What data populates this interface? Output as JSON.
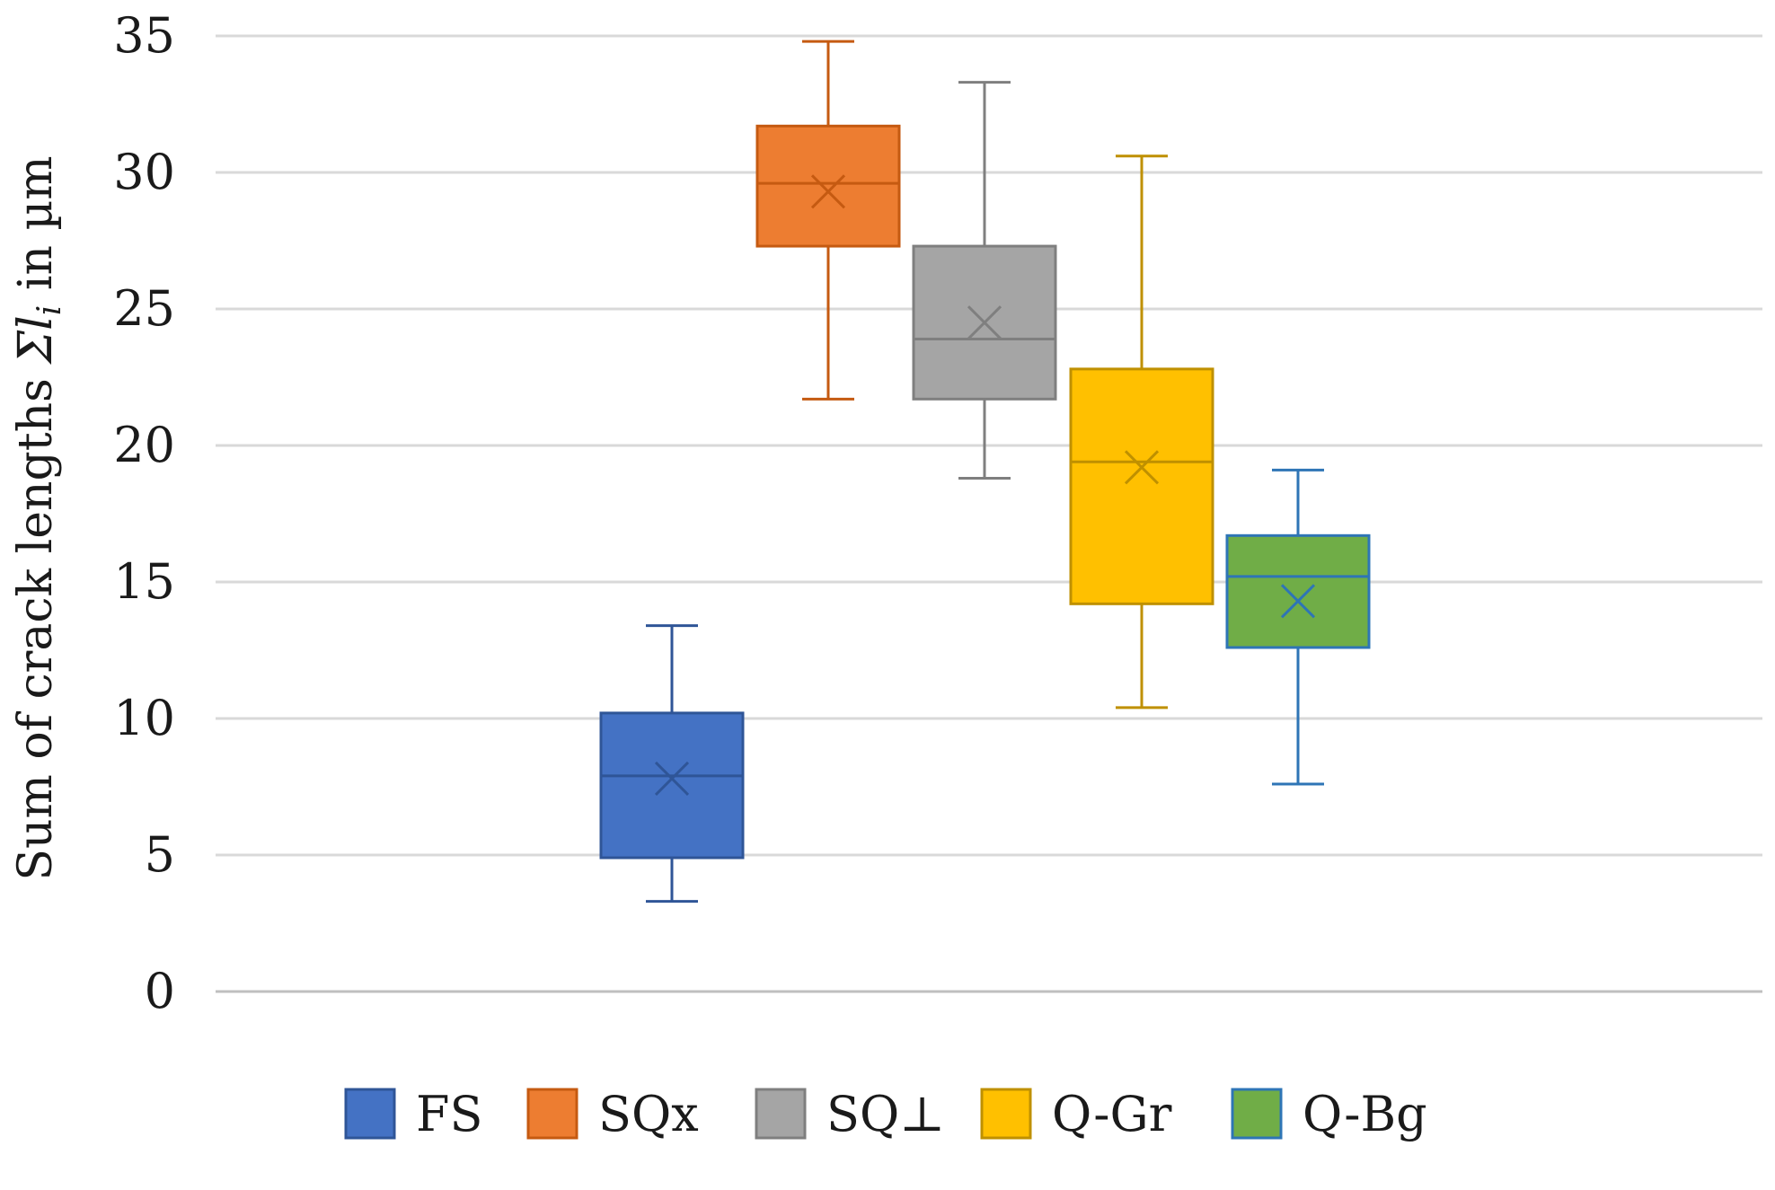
{
  "chart_data": {
    "type": "box",
    "ylabel_prefix": "Sum of crack lengths ",
    "ylabel_symbol": "Σl",
    "ylabel_subscript": "i",
    "ylabel_suffix": " in µm",
    "ylim": [
      0,
      35
    ],
    "yticks": [
      "0",
      "5",
      "10",
      "15",
      "20",
      "25",
      "30",
      "35"
    ],
    "grid": true,
    "legend_position": "bottom",
    "series": [
      {
        "name": "FS",
        "color": "#4472C4",
        "border": "#2F5597",
        "min": 3.3,
        "q1": 4.9,
        "median": 7.9,
        "q3": 10.2,
        "max": 13.4,
        "mean": 7.8
      },
      {
        "name": "SQx",
        "color": "#ED7D31",
        "border": "#C55A11",
        "min": 21.7,
        "q1": 27.3,
        "median": 29.6,
        "q3": 31.7,
        "max": 34.8,
        "mean": 29.3
      },
      {
        "name": "SQ⊥",
        "color": "#A5A5A5",
        "border": "#7F7F7F",
        "min": 18.8,
        "q1": 21.7,
        "median": 23.9,
        "q3": 27.3,
        "max": 33.3,
        "mean": 24.5
      },
      {
        "name": "Q-Gr",
        "color": "#FFC000",
        "border": "#BF9000",
        "min": 10.4,
        "q1": 14.2,
        "median": 19.4,
        "q3": 22.8,
        "max": 30.6,
        "mean": 19.2
      },
      {
        "name": "Q-Bg",
        "color": "#70AD47",
        "border": "#2E75B6",
        "min": 7.6,
        "q1": 12.6,
        "median": 15.2,
        "q3": 16.7,
        "max": 19.1,
        "mean": 14.3
      }
    ]
  }
}
